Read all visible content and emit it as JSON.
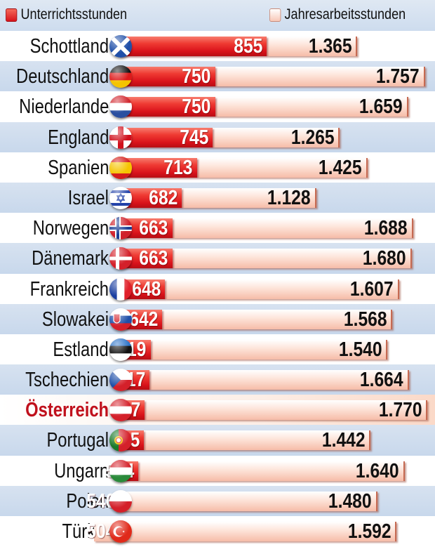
{
  "legend": {
    "series1": "Unterrichtsstunden",
    "series2": "Jahresarbeitsstunden"
  },
  "colors": {
    "teaching_bar": "#e0242a",
    "annual_bar": "#fad4c6",
    "highlight_label": "#c0101c",
    "row_alt": "#d0deef"
  },
  "rows": [
    {
      "country": "Schottland",
      "flag": "scotland-flag-icon",
      "teaching": "855",
      "annual": "1.365",
      "highlight": false
    },
    {
      "country": "Deutschland",
      "flag": "germany-flag-icon",
      "teaching": "750",
      "annual": "1.757",
      "highlight": false
    },
    {
      "country": "Niederlande",
      "flag": "netherlands-flag-icon",
      "teaching": "750",
      "annual": "1.659",
      "highlight": false
    },
    {
      "country": "England",
      "flag": "england-flag-icon",
      "teaching": "745",
      "annual": "1.265",
      "highlight": false
    },
    {
      "country": "Spanien",
      "flag": "spain-flag-icon",
      "teaching": "713",
      "annual": "1.425",
      "highlight": false
    },
    {
      "country": "Israel",
      "flag": "israel-flag-icon",
      "teaching": "682",
      "annual": "1.128",
      "highlight": false
    },
    {
      "country": "Norwegen",
      "flag": "norway-flag-icon",
      "teaching": "663",
      "annual": "1.688",
      "highlight": false
    },
    {
      "country": "Dänemark",
      "flag": "denmark-flag-icon",
      "teaching": "663",
      "annual": "1.680",
      "highlight": false
    },
    {
      "country": "Frankreich",
      "flag": "france-flag-icon",
      "teaching": "648",
      "annual": "1.607",
      "highlight": false
    },
    {
      "country": "Slowakei",
      "flag": "slovakia-flag-icon",
      "teaching": "642",
      "annual": "1.568",
      "highlight": false
    },
    {
      "country": "Estland",
      "flag": "estonia-flag-icon",
      "teaching": "619",
      "annual": "1.540",
      "highlight": false
    },
    {
      "country": "Tschechien",
      "flag": "czechia-flag-icon",
      "teaching": "617",
      "annual": "1.664",
      "highlight": false
    },
    {
      "country": "Österreich",
      "flag": "austria-flag-icon",
      "teaching": "607",
      "annual": "1.770",
      "highlight": true
    },
    {
      "country": "Portugal",
      "flag": "portugal-flag-icon",
      "teaching": "605",
      "annual": "1.442",
      "highlight": false
    },
    {
      "country": "Ungarn",
      "flag": "hungary-flag-icon",
      "teaching": "594",
      "annual": "1.640",
      "highlight": false
    },
    {
      "country": "Polen",
      "flag": "poland-flag-icon",
      "teaching": "546",
      "annual": "1.480",
      "highlight": false
    },
    {
      "country": "Türkei",
      "flag": "turkey-flag-icon",
      "teaching": "504",
      "annual": "1.592",
      "highlight": false
    }
  ],
  "chart_data": {
    "type": "bar",
    "orientation": "horizontal",
    "stacked": true,
    "title": "",
    "xlabel": "",
    "ylabel": "",
    "legend_position": "top",
    "grid": false,
    "categories": [
      "Schottland",
      "Deutschland",
      "Niederlande",
      "England",
      "Spanien",
      "Israel",
      "Norwegen",
      "Dänemark",
      "Frankreich",
      "Slowakei",
      "Estland",
      "Tschechien",
      "Österreich",
      "Portugal",
      "Ungarn",
      "Polen",
      "Türkei"
    ],
    "series": [
      {
        "name": "Unterrichtsstunden",
        "values": [
          855,
          750,
          750,
          745,
          713,
          682,
          663,
          663,
          648,
          642,
          619,
          617,
          607,
          605,
          594,
          546,
          504
        ]
      },
      {
        "name": "Jahresarbeitsstunden",
        "values": [
          1365,
          1757,
          1659,
          1265,
          1425,
          1128,
          1688,
          1680,
          1607,
          1568,
          1540,
          1664,
          1770,
          1442,
          1640,
          1480,
          1592
        ]
      }
    ],
    "highlighted_category": "Österreich",
    "note": "Red bar overlays the first part of the total annual hours bar; values shown with German thousands separator."
  }
}
